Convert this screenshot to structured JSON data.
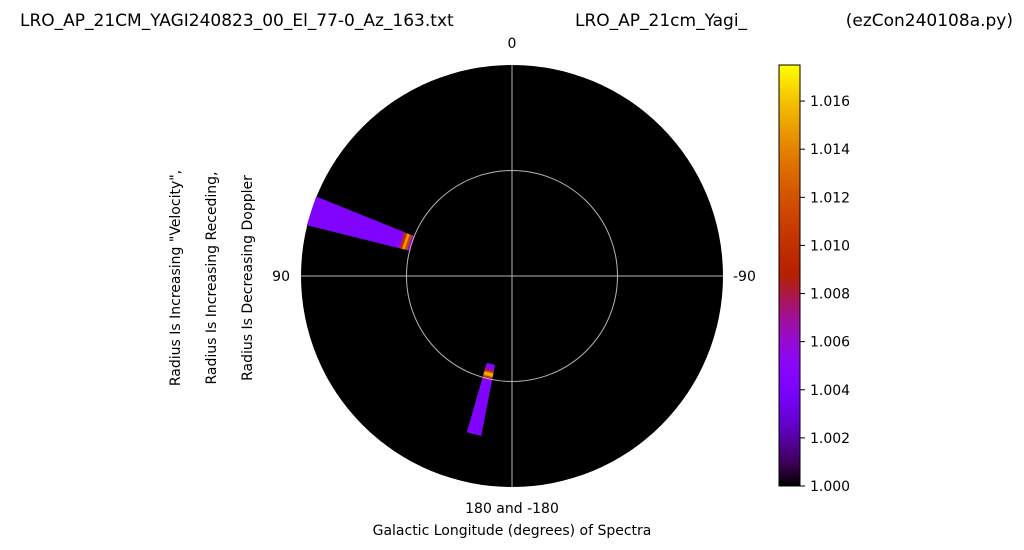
{
  "header": {
    "left": "LRO_AP_21CM_YAGI240823_00_El_77-0_Az_163.txt",
    "center": "LRO_AP_21cm_Yagi_",
    "right": "(ezCon240108a.py)"
  },
  "chart_data": {
    "type": "heatmap",
    "projection": "polar",
    "title": "",
    "xlabel": "Galactic Longitude (degrees) of Spectra",
    "ylabel_lines": [
      "Radius Is Increasing \"Velocity\",",
      "Radius Is Increasing Receding,",
      "Radius Is Decreasing Doppler"
    ],
    "angle_tick_labels": {
      "top": "0",
      "left": "90",
      "right": "-90",
      "bottom": "180 and -180"
    },
    "angle_direction": "counterclockwise, 0 at top",
    "grid": true,
    "background_color": "#000000",
    "grid_color": "#b4b4b4",
    "colormap": "gnuplot",
    "colorbar": {
      "min": 1.0,
      "max": 1.0175,
      "tick_values": [
        1.0,
        1.002,
        1.004,
        1.006,
        1.008,
        1.01,
        1.012,
        1.014,
        1.016
      ],
      "tick_labels": [
        "1.000",
        "1.002",
        "1.004",
        "1.006",
        "1.008",
        "1.010",
        "1.012",
        "1.014",
        "1.016"
      ]
    },
    "wedges": [
      {
        "name": "",
        "angle_from_deg": 68,
        "angle_to_deg": 76,
        "radius_from": 0.5,
        "radius_to": 1.0,
        "base_value": 1.0045,
        "peak_radius": 0.53,
        "peak_value": 1.015
      },
      {
        "name": "",
        "angle_from_deg": 164,
        "angle_to_deg": 169,
        "radius_from": 0.43,
        "radius_to": 0.77,
        "base_value": 1.0045,
        "peak_radius": 0.48,
        "peak_value": 1.016
      }
    ]
  }
}
